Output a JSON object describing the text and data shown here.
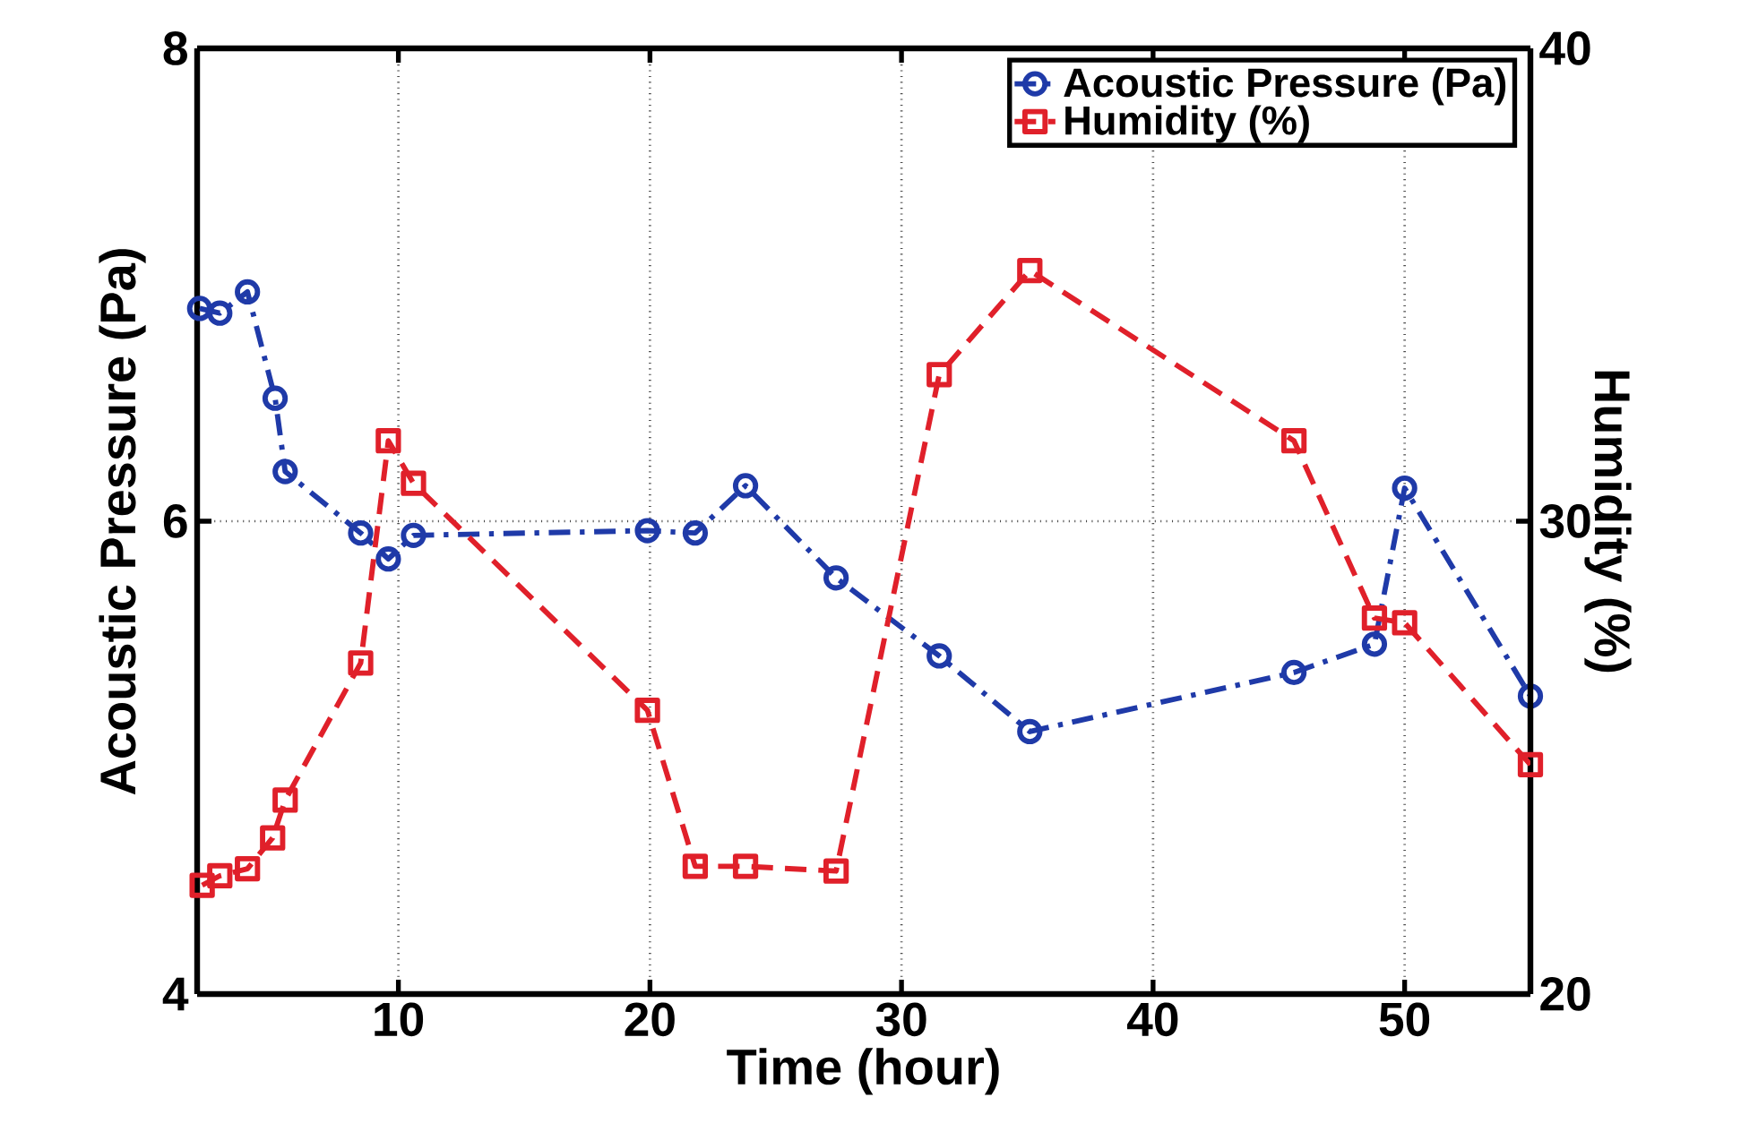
{
  "chart_data": {
    "type": "line",
    "xlabel": "Time (hour)",
    "ylabel": "Acoustic Pressure (Pa)",
    "y2label": "Humidity (%)",
    "xlim": [
      2,
      55
    ],
    "xticks": [
      10,
      20,
      30,
      40,
      50
    ],
    "ylim": [
      4,
      8
    ],
    "yticks": [
      4,
      6,
      8
    ],
    "y2lim": [
      20,
      40
    ],
    "y2ticks": [
      20,
      30,
      40
    ],
    "grid": true,
    "legend": "top right",
    "series": [
      {
        "name": "Acoustic Pressure (Pa)",
        "color": "#1f3aa8",
        "marker": "circle",
        "line_style": "dashdot",
        "x": [
          2.1,
          2.9,
          4.0,
          5.1,
          5.5,
          8.5,
          9.6,
          10.6,
          19.9,
          21.8,
          23.8,
          27.4,
          31.5,
          35.1,
          45.6,
          48.8,
          50.0,
          55.0
        ],
        "values": [
          6.9,
          6.88,
          6.97,
          6.52,
          6.21,
          5.95,
          5.84,
          5.94,
          5.96,
          5.95,
          6.15,
          5.76,
          5.43,
          5.11,
          5.36,
          5.48,
          6.14,
          5.26
        ]
      },
      {
        "name": "Humidity (%)",
        "color": "#e0202a",
        "marker": "square",
        "line_style": "dashed",
        "axis": "y2",
        "x": [
          2.2,
          2.9,
          4.0,
          5.0,
          5.5,
          8.5,
          9.6,
          10.6,
          19.9,
          21.8,
          23.8,
          27.4,
          31.5,
          35.1,
          45.6,
          48.8,
          50.0,
          55.0
        ],
        "values": [
          22.3,
          22.5,
          22.65,
          23.3,
          24.1,
          27.0,
          31.7,
          30.8,
          26.0,
          22.7,
          22.7,
          22.6,
          33.1,
          35.3,
          31.7,
          27.95,
          27.85,
          24.85
        ]
      }
    ]
  }
}
